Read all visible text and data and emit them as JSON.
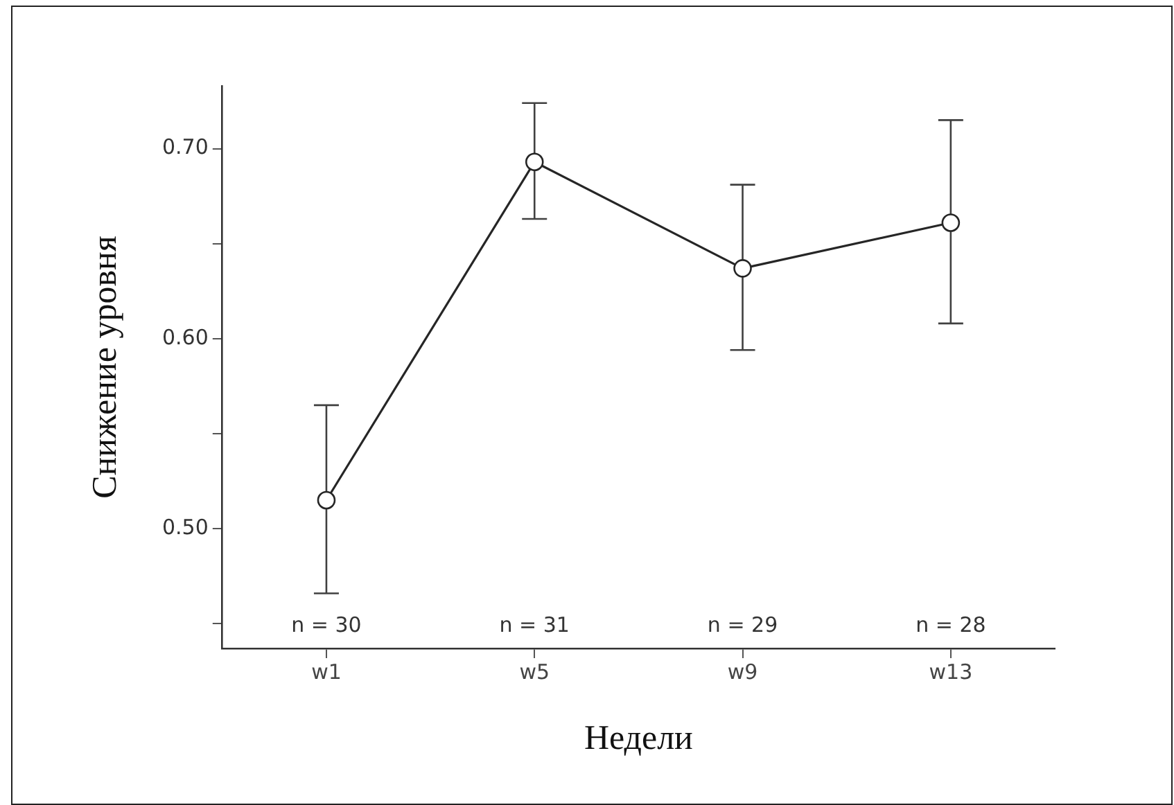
{
  "chart_data": {
    "type": "line",
    "xlabel": "Недели",
    "ylabel": "Снижение уровня",
    "categories": [
      "w1",
      "w5",
      "w9",
      "w13"
    ],
    "series": [
      {
        "color": "#262626",
        "values": [
          0.515,
          0.693,
          0.637,
          0.661
        ],
        "errors": [
          [
            0.466,
            0.565
          ],
          [
            0.663,
            0.724
          ],
          [
            0.594,
            0.681
          ],
          [
            0.608,
            0.715
          ]
        ]
      }
    ],
    "ylim": [
      0.437,
      0.733
    ],
    "yticks": [
      {
        "value": 0.45,
        "label": null
      },
      {
        "value": 0.5,
        "label": "0.50"
      },
      {
        "value": 0.55,
        "label": null
      },
      {
        "value": 0.6,
        "label": "0.60"
      },
      {
        "value": 0.65,
        "label": null
      },
      {
        "value": 0.7,
        "label": "0.70"
      }
    ],
    "annotations": [
      "n = 30",
      "n = 31",
      "n = 29",
      "n = 28"
    ],
    "marker": "circle",
    "line_style": "solid",
    "grid": false,
    "legend": false
  }
}
